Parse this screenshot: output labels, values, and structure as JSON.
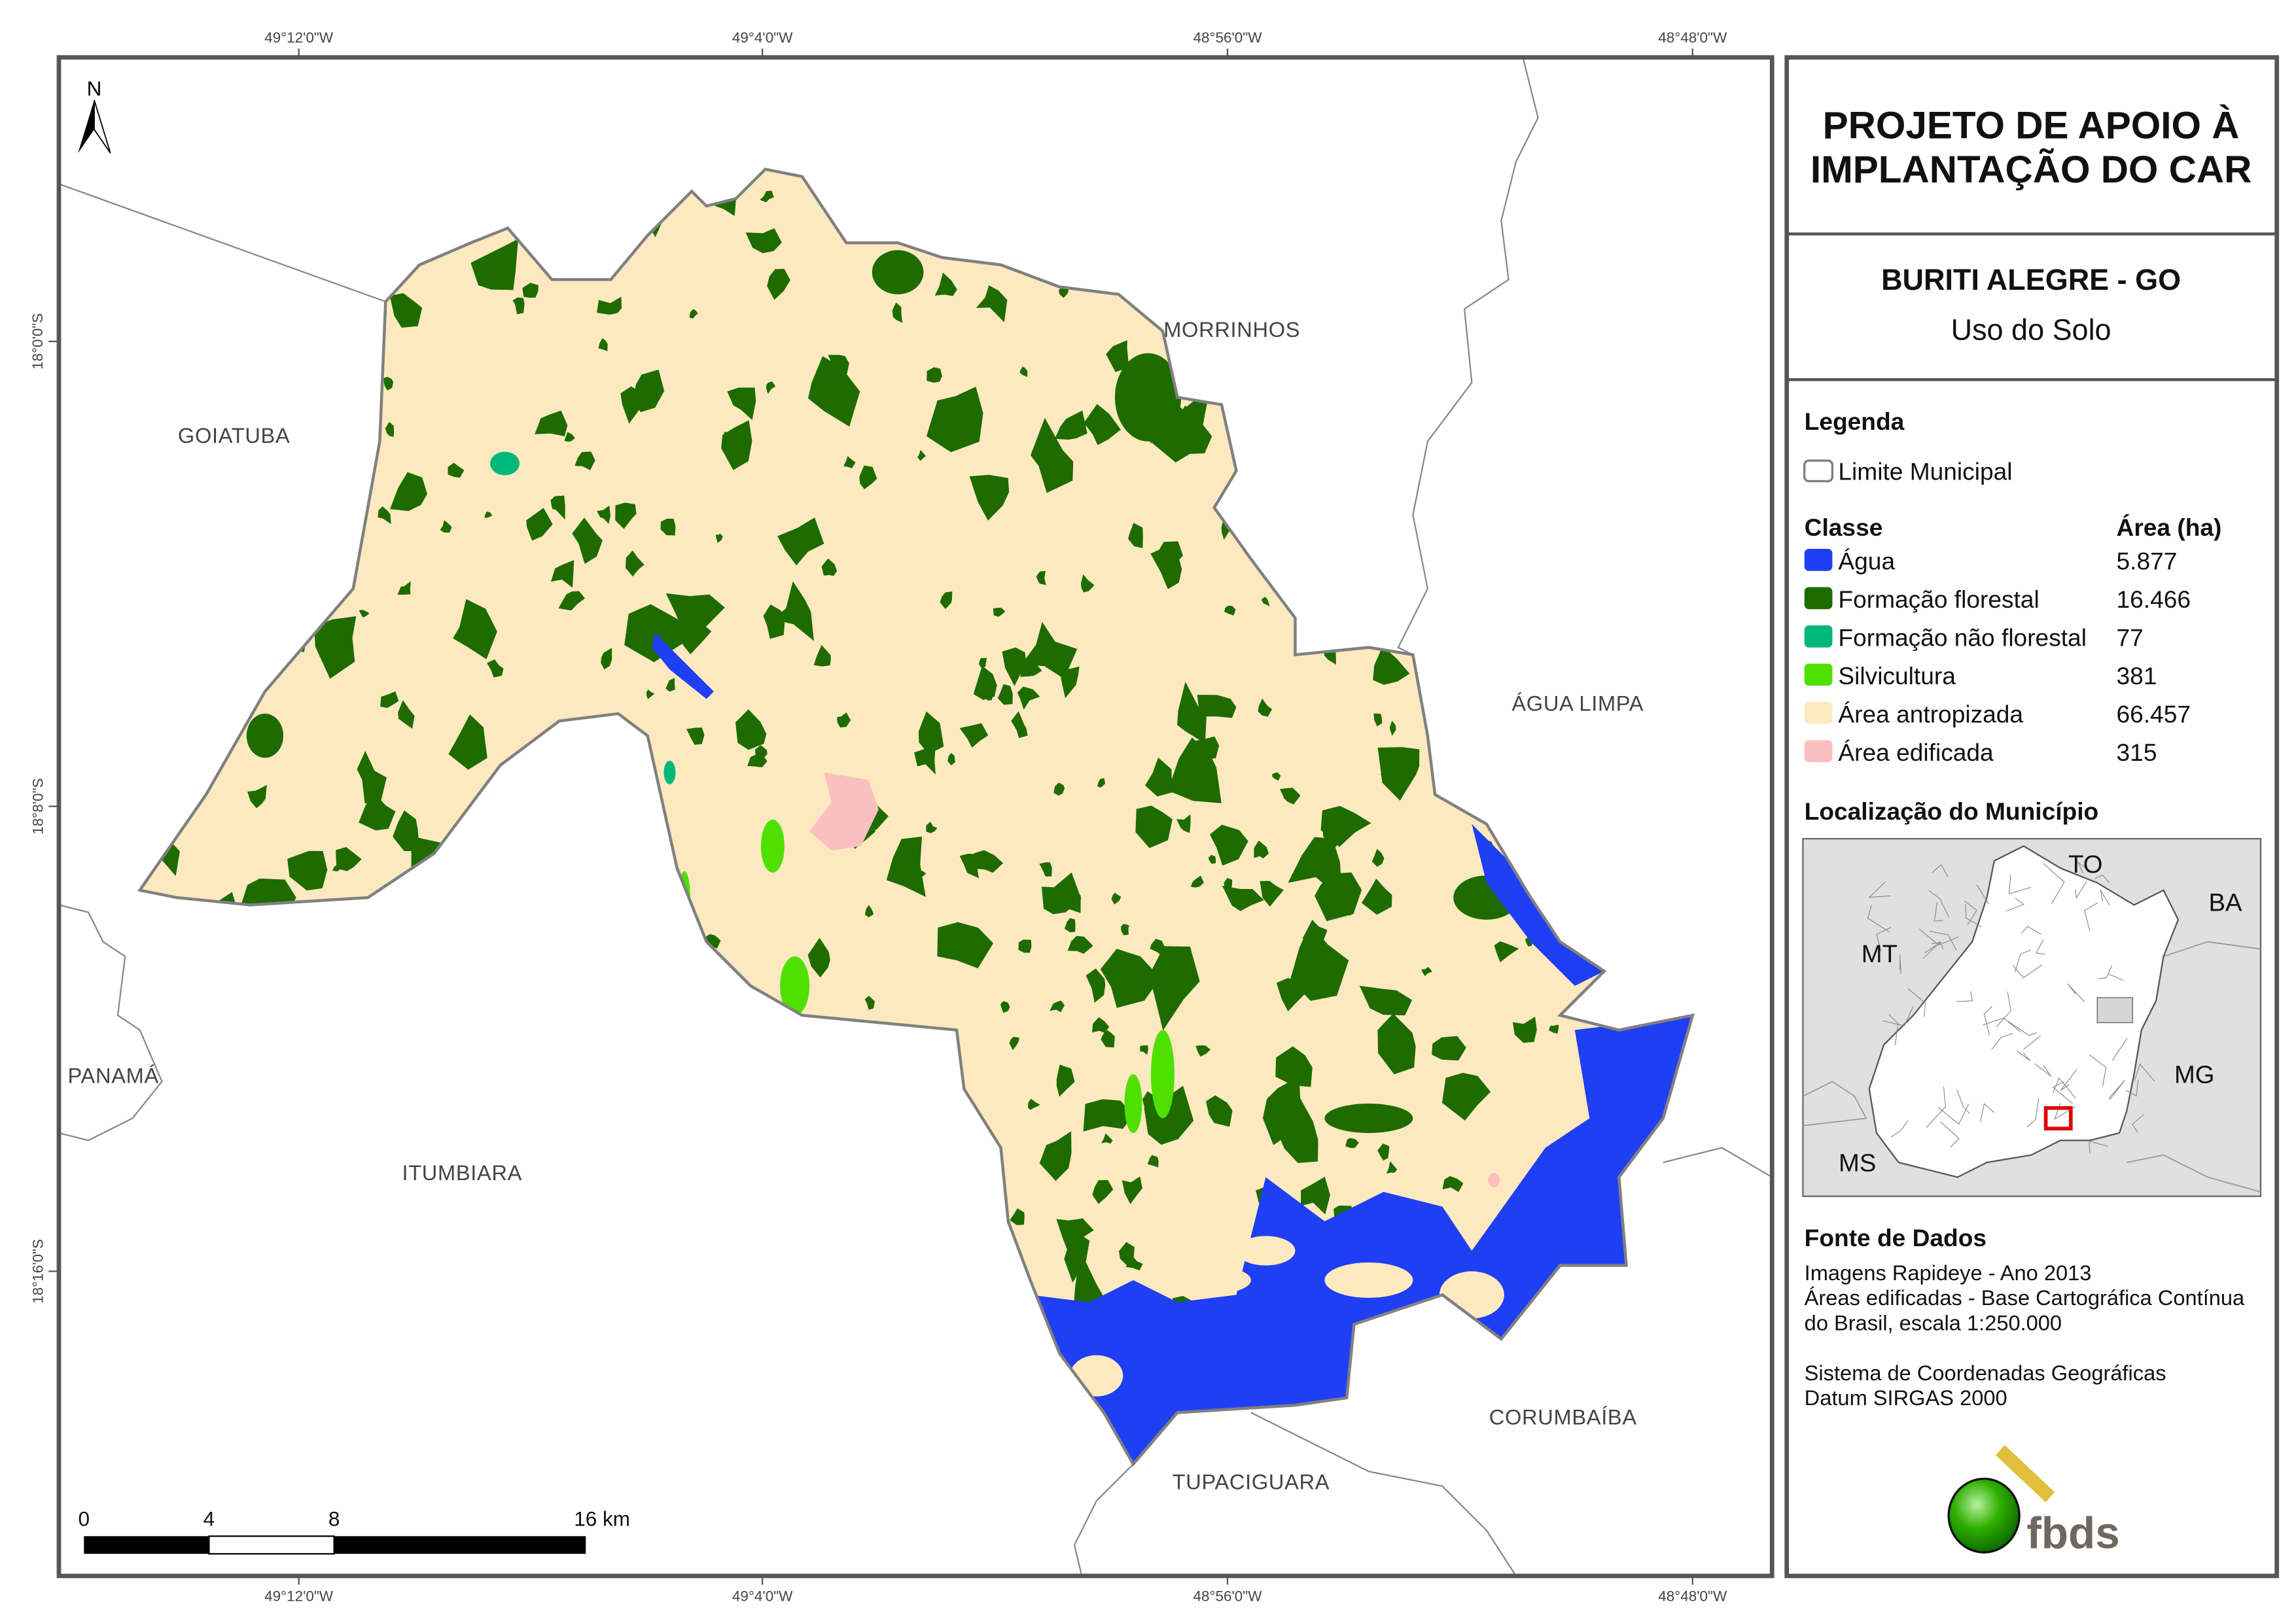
{
  "title": {
    "line1": "PROJETO DE APOIO À",
    "line2": "IMPLANTAÇÃO DO CAR"
  },
  "municipality": {
    "name": "BURITI ALEGRE - GO",
    "theme": "Uso do Solo"
  },
  "legend": {
    "heading": "Legenda",
    "boundary_label": "Limite Municipal",
    "class_header": "Classe",
    "area_header": "Área (ha)",
    "classes": [
      {
        "label": "Água",
        "area": "5.877",
        "color": "#1f3ff5"
      },
      {
        "label": "Formação florestal",
        "area": "16.466",
        "color": "#1e6b00"
      },
      {
        "label": "Formação não florestal",
        "area": "77",
        "color": "#00b77a"
      },
      {
        "label": "Silvicultura",
        "area": "381",
        "color": "#4fe000"
      },
      {
        "label": "Área antropizada",
        "area": "66.457",
        "color": "#fde9c0"
      },
      {
        "label": "Área edificada",
        "area": "315",
        "color": "#fcbfbf"
      }
    ]
  },
  "location": {
    "heading": "Localização do Município",
    "states": [
      "TO",
      "BA",
      "MT",
      "MG",
      "MS"
    ],
    "highlight_color": "#e00000"
  },
  "sources": {
    "heading": "Fonte de Dados",
    "lines": [
      "Imagens Rapideye - Ano 2013",
      "Áreas edificadas - Base Cartográfica Contínua",
      "do Brasil, escala 1:250.000",
      "Sistema de Coordenadas Geográficas",
      "Datum SIRGAS 2000"
    ]
  },
  "logo": {
    "text": "fbds"
  },
  "map": {
    "north_label": "N",
    "longitudes": [
      "49°12'0\"W",
      "49°4'0\"W",
      "48°56'0\"W",
      "48°48'0\"W"
    ],
    "latitudes": [
      "18°0'0\"S",
      "18°8'0\"S",
      "18°16'0\"S"
    ],
    "neighbors": [
      "MORRINHOS",
      "GOIATUBA",
      "ÁGUA LIMPA",
      "PANAMÁ",
      "ITUMBIARA",
      "CORUMBAÍBA",
      "TUPACIGUARA"
    ],
    "scale_labels": [
      "0",
      "4",
      "8",
      "16 km"
    ],
    "boundary_color": "#808080"
  }
}
